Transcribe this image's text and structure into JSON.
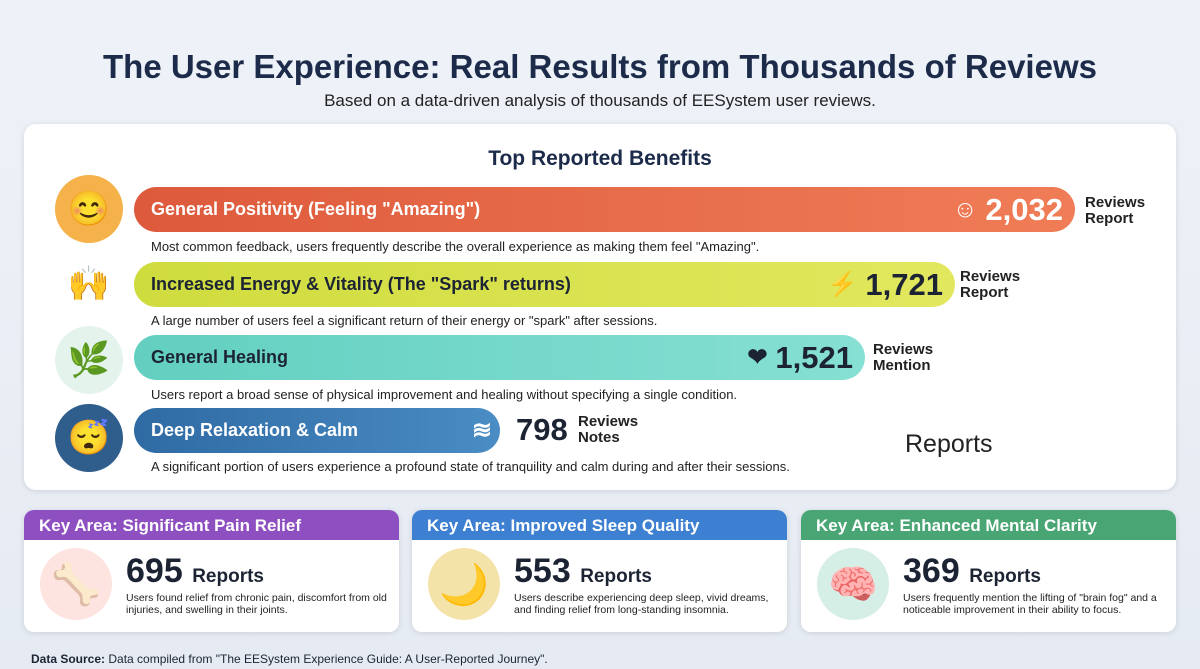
{
  "title": "The User Experience: Real Results from Thousands of Reviews",
  "subtitle": "Based on a data-driven analysis of thousands of EESystem user reviews.",
  "panel_title": "Top Reported Benefits",
  "benefits": [
    {
      "label": "General Positivity (Feeling \"Amazing\")",
      "count": "2,032",
      "unit1": "Reviews",
      "unit2": "Report",
      "icon": "smiley-icon",
      "desc": "Most common feedback, users frequently describe the overall experience as making them feel \"Amazing\".",
      "fraction": 0.87
    },
    {
      "label": "Increased Energy & Vitality (The \"Spark\" returns)",
      "count": "1,721",
      "unit1": "Reviews",
      "unit2": "Report",
      "icon": "lightning-icon",
      "desc": "A large number of users feel a significant return of their energy or \"spark\" after sessions.",
      "fraction": 0.74
    },
    {
      "label": "General Healing",
      "count": "1,521",
      "unit1": "Reviews",
      "unit2": "Mention",
      "icon": "heart-hand-icon",
      "desc": "Users report a broad sense of physical improvement and healing without specifying a single condition.",
      "fraction": 0.65
    },
    {
      "label": "Deep Relaxation & Calm",
      "count": "798",
      "unit1": "Reviews",
      "unit2": "Notes",
      "icon": "waves-icon",
      "desc": "A significant portion of users experience a profound state of tranquility and calm during and after their sessions.",
      "fraction": 0.34
    }
  ],
  "stray_label": "Reports",
  "cards": [
    {
      "header": "Key Area: Significant Pain Relief",
      "count": "695",
      "unit": "Reports",
      "text": "Users found relief from chronic pain, discomfort from old injuries, and swelling in their joints.",
      "color": "#8e4fc0"
    },
    {
      "header": "Key Area: Improved Sleep Quality",
      "count": "553",
      "unit": "Reports",
      "text": "Users describe experiencing deep sleep, vivid dreams, and finding relief from long-standing insomnia.",
      "color": "#3d7fd0"
    },
    {
      "header": "Key Area: Enhanced Mental Clarity",
      "count": "369",
      "unit": "Reports",
      "text": "Users frequently mention the lifting of \"brain fog\" and a noticeable improvement in their ability to focus.",
      "color": "#4aa574"
    }
  ],
  "source_label": "Data Source:",
  "source_text": " Data compiled from \"The EESystem Experience Guide: A User-Reported Journey\"."
}
